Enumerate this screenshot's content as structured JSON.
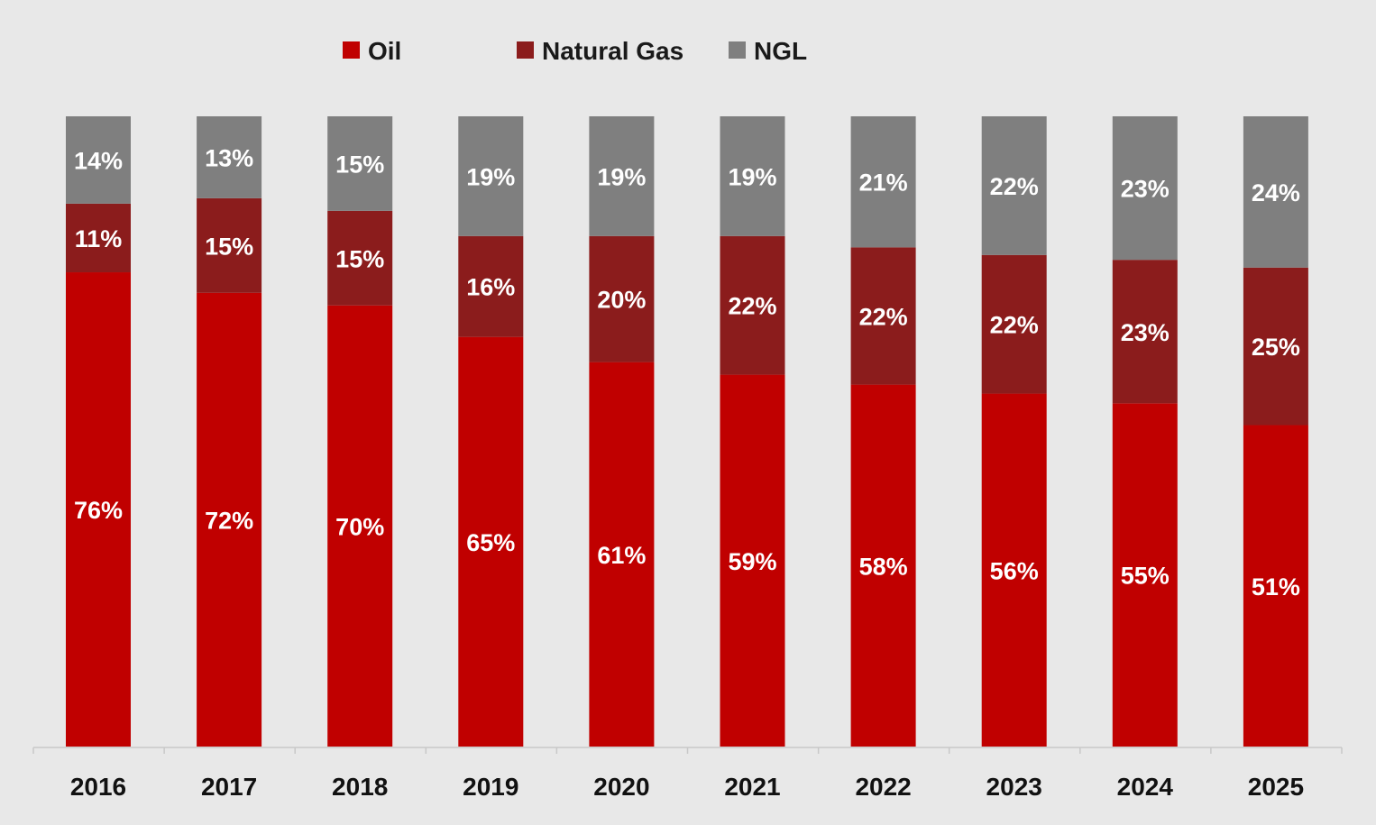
{
  "chart_data": {
    "type": "bar",
    "stacked": true,
    "percent": true,
    "title": "",
    "xlabel": "",
    "ylabel": "",
    "ylim": [
      0,
      100
    ],
    "grid": false,
    "legend_position": "top-center",
    "categories": [
      "2016",
      "2017",
      "2018",
      "2019",
      "2020",
      "2021",
      "2022",
      "2023",
      "2024",
      "2025"
    ],
    "series": [
      {
        "name": "Oil",
        "color": "#c00000",
        "values": [
          76,
          72,
          70,
          65,
          61,
          59,
          58,
          56,
          55,
          51
        ]
      },
      {
        "name": "Natural Gas",
        "color": "#8b1c1c",
        "values": [
          11,
          15,
          15,
          16,
          20,
          22,
          22,
          22,
          23,
          25
        ]
      },
      {
        "name": "NGL",
        "color": "#7f7f7f",
        "values": [
          14,
          13,
          15,
          19,
          19,
          19,
          21,
          22,
          23,
          24
        ]
      }
    ]
  }
}
